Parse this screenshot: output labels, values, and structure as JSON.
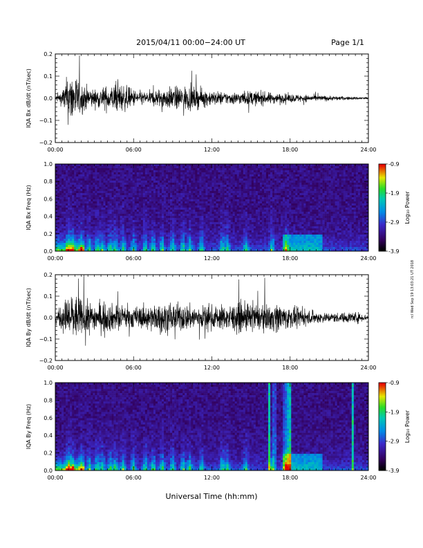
{
  "header": {
    "title": "2015/04/11   00:00−24:00 UT",
    "page": "Page 1/1"
  },
  "footer": {
    "xlabel": "Universal Time (hh:mm)"
  },
  "side_stamp": "rcl Wed Sep 19 13:03:21 UT 2018",
  "colorbar": {
    "label": "Log₁₀ Power",
    "ticks": [
      "-0.9",
      "-1.9",
      "-2.9",
      "-3.9"
    ],
    "range": [
      -3.9,
      -0.9
    ]
  },
  "chart_data": [
    {
      "type": "line",
      "ylabel": "IQA Bx dB/dt (nT/sec)",
      "x_ticks": [
        "00:00",
        "06:00",
        "12:00",
        "18:00",
        "24:00"
      ],
      "y_ticks": [
        "0.2",
        "0.1",
        "0.0",
        "−0.1",
        "−0.2"
      ],
      "xlim_hours": [
        0,
        24
      ],
      "ylim": [
        -0.2,
        0.2
      ],
      "amplitude_envelope": {
        "hours": [
          0,
          0.5,
          1,
          1.5,
          2,
          3,
          4,
          5,
          6,
          7,
          8,
          9,
          10,
          11,
          12,
          13,
          14,
          15,
          16,
          17,
          18,
          19,
          20,
          21,
          22,
          23,
          24
        ],
        "amplitude": [
          0.02,
          0.06,
          0.2,
          0.2,
          0.12,
          0.07,
          0.1,
          0.12,
          0.07,
          0.05,
          0.08,
          0.09,
          0.1,
          0.08,
          0.06,
          0.05,
          0.05,
          0.06,
          0.05,
          0.04,
          0.035,
          0.03,
          0.025,
          0.02,
          0.015,
          0.012,
          0.01
        ]
      }
    },
    {
      "type": "heatmap",
      "ylabel": "IQA Bx Freq (Hz)",
      "x_ticks": [
        "00:00",
        "06:00",
        "12:00",
        "18:00",
        "24:00"
      ],
      "y_ticks": [
        "1.0",
        "0.8",
        "0.6",
        "0.4",
        "0.2",
        "0.0"
      ],
      "xlim_hours": [
        0,
        24
      ],
      "ylim": [
        0,
        1.0
      ],
      "z_label": "Log₁₀ Power",
      "zlim": [
        -3.9,
        -0.9
      ]
    },
    {
      "type": "line",
      "ylabel": "IQA By dB/dt (nT/sec)",
      "x_ticks": [
        "00:00",
        "06:00",
        "12:00",
        "18:00",
        "24:00"
      ],
      "y_ticks": [
        "0.2",
        "0.1",
        "0.0",
        "−0.1",
        "−0.2"
      ],
      "xlim_hours": [
        0,
        24
      ],
      "ylim": [
        -0.2,
        0.2
      ],
      "amplitude_envelope": {
        "hours": [
          0,
          0.5,
          1,
          1.5,
          2,
          3,
          4,
          5,
          6,
          7,
          8,
          9,
          10,
          11,
          12,
          13,
          14,
          15,
          16,
          17,
          18,
          19,
          20,
          21,
          22,
          23,
          24
        ],
        "amplitude": [
          0.04,
          0.1,
          0.2,
          0.2,
          0.15,
          0.12,
          0.12,
          0.1,
          0.09,
          0.1,
          0.12,
          0.12,
          0.11,
          0.1,
          0.1,
          0.1,
          0.12,
          0.12,
          0.1,
          0.12,
          0.09,
          0.06,
          0.05,
          0.04,
          0.04,
          0.05,
          0.02
        ]
      }
    },
    {
      "type": "heatmap",
      "ylabel": "IQA By Freq (Hz)",
      "x_ticks": [
        "00:00",
        "06:00",
        "12:00",
        "18:00",
        "24:00"
      ],
      "y_ticks": [
        "1.0",
        "0.8",
        "0.6",
        "0.4",
        "0.2",
        "0.0"
      ],
      "xlim_hours": [
        0,
        24
      ],
      "ylim": [
        0,
        1.0
      ],
      "z_label": "Log₁₀ Power",
      "zlim": [
        -3.9,
        -0.9
      ]
    }
  ]
}
